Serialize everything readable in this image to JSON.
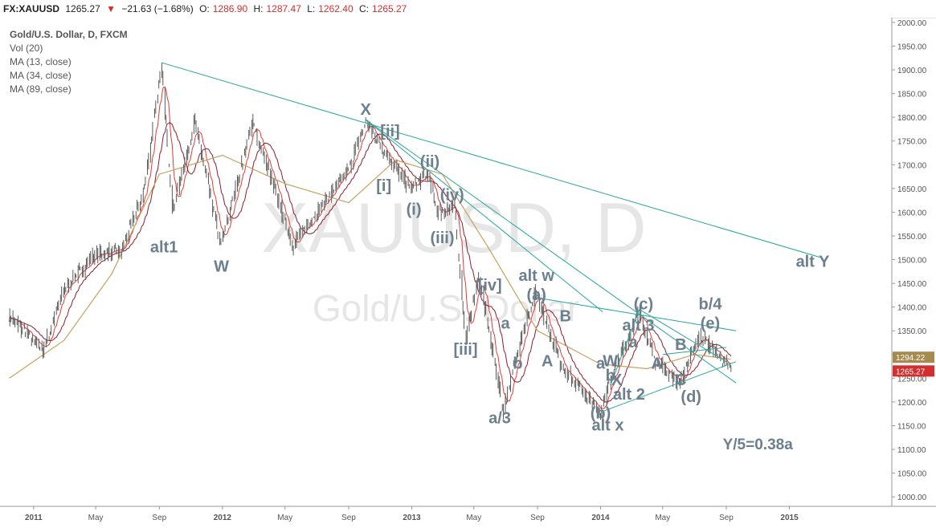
{
  "header": {
    "symbol": "FX:XAUUSD",
    "last": "1265.27",
    "change": "−21.63 (−1.68%)",
    "o_label": "O:",
    "o_value": "1286.90",
    "h_label": "H:",
    "h_value": "1287.47",
    "l_label": "L:",
    "l_value": "1262.40",
    "c_label": "C:",
    "c_value": "1265.27"
  },
  "indicators": [
    "Gold/U.S. Dollar, D, FXCM",
    "Vol (20)",
    "MA (13, close)",
    "MA (34, close)",
    "MA (89, close)"
  ],
  "watermark": {
    "symbol": "XAUUSD, D",
    "name": "Gold/U.S. Dollar"
  },
  "price_tags": {
    "ma_value": "1294.22",
    "last_value": "1265.27"
  },
  "colors": {
    "candle": "#5a5a5a",
    "ma13": "#e53935",
    "ma34": "#8e1b2e",
    "ma89": "#c8a060",
    "trendline": "#26a69a",
    "wave_label": "#6b7f8f",
    "last_tag": "#d32f2f",
    "ma_tag": "#a68a50"
  },
  "chart_data": {
    "type": "line",
    "title": "Gold/U.S. Dollar, D, FXCM",
    "x_ticks": [
      "2011",
      "May",
      "Sep",
      "2012",
      "May",
      "Sep",
      "2013",
      "May",
      "Sep",
      "2014",
      "May",
      "Sep",
      "2015"
    ],
    "y_ticks": [
      "1000.00",
      "1050.00",
      "1100.00",
      "1150.00",
      "1200.00",
      "1250.00",
      "1300.00",
      "1350.00",
      "1400.00",
      "1450.00",
      "1500.00",
      "1550.00",
      "1600.00",
      "1650.00",
      "1700.00",
      "1750.00",
      "1800.00",
      "1850.00",
      "1900.00",
      "1950.00",
      "2000.00"
    ],
    "ylim": [
      980,
      2010
    ],
    "series": [
      {
        "name": "Gold/U.S. Dollar",
        "x": [
          "2010-11-15",
          "2011-01-20",
          "2011-03-01",
          "2011-05-01",
          "2011-06-20",
          "2011-08-01",
          "2011-09-06",
          "2011-09-26",
          "2011-11-08",
          "2011-12-29",
          "2012-02-28",
          "2012-05-16",
          "2012-07-01",
          "2012-09-01",
          "2012-10-04",
          "2012-11-15",
          "2012-12-28",
          "2013-02-01",
          "2013-02-20",
          "2013-03-25",
          "2013-04-15",
          "2013-05-10",
          "2013-06-27",
          "2013-08-01",
          "2013-08-28",
          "2013-10-15",
          "2013-12-31",
          "2014-01-25",
          "2014-03-17",
          "2014-04-15",
          "2014-06-03",
          "2014-07-10",
          "2014-08-15",
          "2014-09-10"
        ],
        "y": [
          1380,
          1310,
          1440,
          1510,
          1520,
          1640,
          1910,
          1600,
          1790,
          1530,
          1790,
          1530,
          1600,
          1690,
          1790,
          1720,
          1650,
          1680,
          1600,
          1610,
          1330,
          1470,
          1180,
          1340,
          1430,
          1280,
          1180,
          1260,
          1390,
          1290,
          1240,
          1340,
          1300,
          1265
        ]
      },
      {
        "name": "MA (89, close)",
        "x": [
          "2010-11-15",
          "2011-03-01",
          "2011-06-01",
          "2011-09-01",
          "2012-01-01",
          "2012-05-01",
          "2012-09-01",
          "2012-12-01",
          "2013-03-01",
          "2013-06-01",
          "2013-09-01",
          "2013-12-31",
          "2014-04-01",
          "2014-07-01",
          "2014-09-10"
        ],
        "y": [
          1250,
          1330,
          1470,
          1680,
          1720,
          1660,
          1620,
          1710,
          1680,
          1520,
          1350,
          1280,
          1270,
          1300,
          1290
        ]
      }
    ],
    "trendlines": [
      {
        "x": [
          "2011-09-06",
          "2015-03-01"
        ],
        "y": [
          1915,
          1505
        ]
      },
      {
        "x": [
          "2012-10-04",
          "2014-01-05"
        ],
        "y": [
          1795,
          1390
        ]
      },
      {
        "x": [
          "2012-10-04",
          "2014-09-20"
        ],
        "y": [
          1795,
          1240
        ]
      },
      {
        "x": [
          "2013-08-28",
          "2014-09-20"
        ],
        "y": [
          1420,
          1350
        ]
      },
      {
        "x": [
          "2014-01-05",
          "2014-09-20"
        ],
        "y": [
          1180,
          1285
        ]
      },
      {
        "x": [
          "2014-01-20",
          "2014-03-17"
        ],
        "y": [
          1235,
          1395
        ]
      },
      {
        "x": [
          "2014-03-17",
          "2014-09-01"
        ],
        "y": [
          1395,
          1285
        ]
      },
      {
        "x": [
          "2014-05-01",
          "2014-09-01"
        ],
        "y": [
          1300,
          1315
        ]
      }
    ],
    "annotations": [
      {
        "text": "alt1",
        "x": "2011-09-10",
        "y": 1515
      },
      {
        "text": "W",
        "x": "2011-12-30",
        "y": 1475
      },
      {
        "text": "X",
        "x": "2012-10-04",
        "y": 1805
      },
      {
        "text": "[ii]",
        "x": "2012-11-20",
        "y": 1760
      },
      {
        "text": "[i]",
        "x": "2012-11-08",
        "y": 1645
      },
      {
        "text": "(ii)",
        "x": "2013-02-05",
        "y": 1695
      },
      {
        "text": "(i)",
        "x": "2013-01-05",
        "y": 1595
      },
      {
        "text": "(iv)",
        "x": "2013-03-20",
        "y": 1625
      },
      {
        "text": "(iii)",
        "x": "2013-03-01",
        "y": 1535
      },
      {
        "text": "[iv]",
        "x": "2013-06-01",
        "y": 1435
      },
      {
        "text": "alt w",
        "x": "2013-08-30",
        "y": 1455
      },
      {
        "text": "(a)",
        "x": "2013-08-30",
        "y": 1415
      },
      {
        "text": "[iii]",
        "x": "2013-04-15",
        "y": 1300
      },
      {
        "text": "a",
        "x": "2013-07-01",
        "y": 1355
      },
      {
        "text": "b",
        "x": "2013-07-25",
        "y": 1270
      },
      {
        "text": "A",
        "x": "2013-09-20",
        "y": 1275
      },
      {
        "text": "B",
        "x": "2013-10-25",
        "y": 1370
      },
      {
        "text": "a/3",
        "x": "2013-06-20",
        "y": 1155
      },
      {
        "text": "(c)",
        "x": "2014-03-25",
        "y": 1395
      },
      {
        "text": "alt 3",
        "x": "2014-03-15",
        "y": 1350
      },
      {
        "text": "b/4",
        "x": "2014-08-01",
        "y": 1395
      },
      {
        "text": "(e)",
        "x": "2014-08-01",
        "y": 1355
      },
      {
        "text": "a",
        "x": "2014-01-01",
        "y": 1270
      },
      {
        "text": "W",
        "x": "2014-01-20",
        "y": 1275
      },
      {
        "text": "b",
        "x": "2014-01-20",
        "y": 1245
      },
      {
        "text": "X",
        "x": "2014-02-01",
        "y": 1235
      },
      {
        "text": "alt 2",
        "x": "2014-02-25",
        "y": 1205
      },
      {
        "text": "a",
        "x": "2014-03-05",
        "y": 1315
      },
      {
        "text": "A",
        "x": "2014-04-20",
        "y": 1270
      },
      {
        "text": "B",
        "x": "2014-06-05",
        "y": 1310
      },
      {
        "text": "C",
        "x": "2014-06-05",
        "y": 1235
      },
      {
        "text": "(d)",
        "x": "2014-06-25",
        "y": 1200
      },
      {
        "text": "(b)",
        "x": "2014-01-01",
        "y": 1165
      },
      {
        "text": "alt x",
        "x": "2014-01-15",
        "y": 1140
      },
      {
        "text": "alt Y",
        "x": "2015-02-15",
        "y": 1485
      },
      {
        "text": "Y/5=0.38a",
        "x": "2014-11-01",
        "y": 1100
      }
    ],
    "grid": false
  }
}
